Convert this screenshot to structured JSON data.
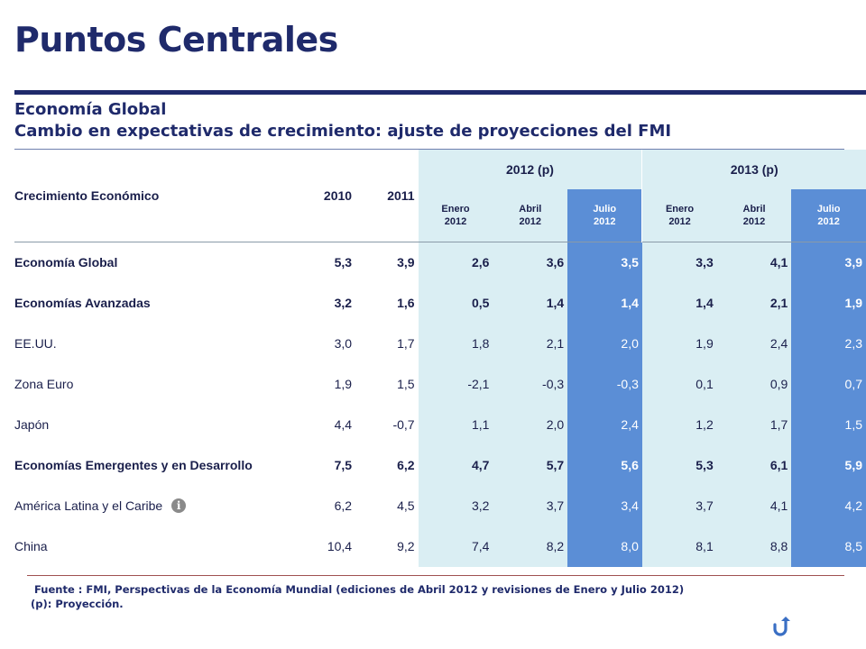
{
  "page": {
    "title": "Puntos Centrales",
    "subtitle1": "Economía Global",
    "subtitle2": "Cambio en expectativas de crecimiento: ajuste de proyecciones del FMI"
  },
  "table": {
    "label_header": "Crecimiento Económico",
    "year_headers": [
      "2010",
      "2011"
    ],
    "groups": [
      "2012 (p)",
      "2013 (p)"
    ],
    "subheaders": [
      {
        "month": "Enero",
        "year": "2012"
      },
      {
        "month": "Abril",
        "year": "2012"
      },
      {
        "month": "Julio",
        "year": "2012"
      },
      {
        "month": "Enero",
        "year": "2012"
      },
      {
        "month": "Abril",
        "year": "2012"
      },
      {
        "month": "Julio",
        "year": "2012"
      }
    ],
    "rows": [
      {
        "label": "Economía Global",
        "bold": true,
        "values": [
          "5,3",
          "3,9",
          "2,6",
          "3,6",
          "3,5",
          "3,3",
          "4,1",
          "3,9"
        ]
      },
      {
        "label": "Economías Avanzadas",
        "bold": true,
        "values": [
          "3,2",
          "1,6",
          "0,5",
          "1,4",
          "1,4",
          "1,4",
          "2,1",
          "1,9"
        ]
      },
      {
        "label": "EE.UU.",
        "bold": false,
        "values": [
          "3,0",
          "1,7",
          "1,8",
          "2,1",
          "2,0",
          "1,9",
          "2,4",
          "2,3"
        ]
      },
      {
        "label": "Zona Euro",
        "bold": false,
        "values": [
          "1,9",
          "1,5",
          "-2,1",
          "-0,3",
          "-0,3",
          "0,1",
          "0,9",
          "0,7"
        ]
      },
      {
        "label": "Japón",
        "bold": false,
        "values": [
          "4,4",
          "-0,7",
          "1,1",
          "2,0",
          "2,4",
          "1,2",
          "1,7",
          "1,5"
        ]
      },
      {
        "label": "Economías Emergentes y en Desarrollo",
        "bold": true,
        "values": [
          "7,5",
          "6,2",
          "4,7",
          "5,7",
          "5,6",
          "5,3",
          "6,1",
          "5,9"
        ]
      },
      {
        "label": "América Latina y el Caribe",
        "bold": false,
        "info_icon": true,
        "values": [
          "6,2",
          "4,5",
          "3,2",
          "3,7",
          "3,4",
          "3,7",
          "4,1",
          "4,2"
        ]
      },
      {
        "label": "China",
        "bold": false,
        "values": [
          "10,4",
          "9,2",
          "7,4",
          "8,2",
          "8,0",
          "8,1",
          "8,8",
          "8,5"
        ]
      }
    ]
  },
  "footer": {
    "source": "Fuente : FMI, Perspectivas de la Economía Mundial (ediciones de Abril 2012 y revisiones de Enero y Julio 2012)",
    "note": "(p): Proyección."
  },
  "icons": {
    "info": "info-icon",
    "back": "return-arrow-icon"
  },
  "colors": {
    "title": "#1f2a6b",
    "highlight_column": "#5b8ed6",
    "light_column": "#daeef3"
  }
}
